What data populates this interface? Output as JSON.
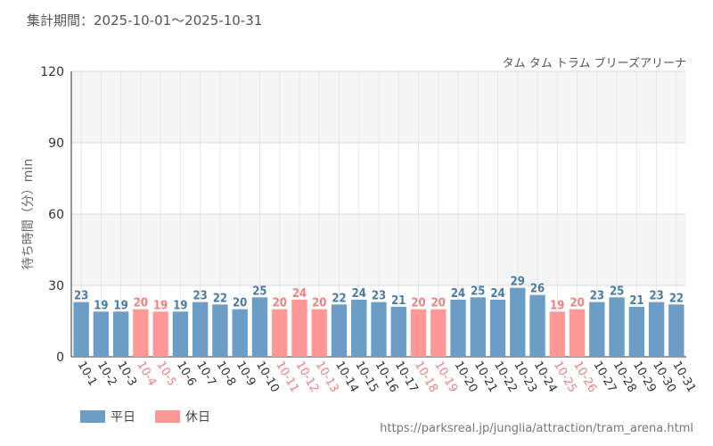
{
  "header": {
    "period": "集計期間：2025-10-01～2025-10-31",
    "subtitle": "タム タム トラム ブリーズアリーナ"
  },
  "footer": {
    "url": "https://parksreal.jp/junglia/attraction/tram_arena.html"
  },
  "legend": {
    "weekday_label": "平日",
    "holiday_label": "休日"
  },
  "colors": {
    "weekday": "#6b9dc6",
    "holiday": "#ff9896",
    "weekday_text": "#4a7aa3",
    "holiday_text": "#f08080"
  },
  "chart_data": {
    "type": "bar",
    "title": "タム タム トラム ブリーズアリーナ",
    "xlabel": "",
    "ylabel": "待ち時間（分）min",
    "ylim": [
      0,
      120
    ],
    "yticks": [
      0,
      30,
      60,
      90,
      120
    ],
    "categories": [
      "10-1",
      "10-2",
      "10-3",
      "10-4",
      "10-5",
      "10-6",
      "10-7",
      "10-8",
      "10-9",
      "10-10",
      "10-11",
      "10-12",
      "10-13",
      "10-14",
      "10-15",
      "10-16",
      "10-17",
      "10-18",
      "10-19",
      "10-20",
      "10-21",
      "10-22",
      "10-23",
      "10-24",
      "10-25",
      "10-26",
      "10-27",
      "10-28",
      "10-29",
      "10-30",
      "10-31"
    ],
    "values": [
      23,
      19,
      19,
      20,
      19,
      19,
      23,
      22,
      20,
      25,
      20,
      24,
      20,
      22,
      24,
      23,
      21,
      20,
      20,
      24,
      25,
      24,
      29,
      26,
      19,
      20,
      23,
      25,
      21,
      23,
      22
    ],
    "day_type": [
      "weekday",
      "weekday",
      "weekday",
      "holiday",
      "holiday",
      "weekday",
      "weekday",
      "weekday",
      "weekday",
      "weekday",
      "holiday",
      "holiday",
      "holiday",
      "weekday",
      "weekday",
      "weekday",
      "weekday",
      "holiday",
      "holiday",
      "weekday",
      "weekday",
      "weekday",
      "weekday",
      "weekday",
      "holiday",
      "holiday",
      "weekday",
      "weekday",
      "weekday",
      "weekday",
      "weekday"
    ],
    "series": [
      {
        "name": "平日"
      },
      {
        "name": "休日"
      }
    ]
  }
}
